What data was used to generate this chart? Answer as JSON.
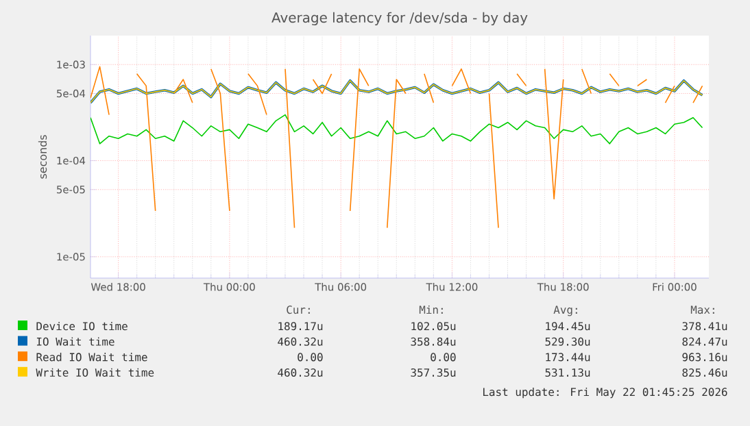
{
  "chart_data": {
    "type": "line",
    "title": "Average latency for /dev/sda - by day",
    "ylabel": "seconds",
    "log": true,
    "grid": true,
    "legend": "bottom",
    "xlim": [
      "2026-05-20T16:30",
      "2026-05-22T01:51"
    ],
    "ylim": [
      6e-06,
      0.002
    ],
    "xticks": [
      {
        "value": "2026-05-20T18:00",
        "label": "Wed 18:00"
      },
      {
        "value": "2026-05-21T00:00",
        "label": "Thu 00:00"
      },
      {
        "value": "2026-05-21T06:00",
        "label": "Thu 06:00"
      },
      {
        "value": "2026-05-21T12:00",
        "label": "Thu 12:00"
      },
      {
        "value": "2026-05-21T18:00",
        "label": "Thu 18:00"
      },
      {
        "value": "2026-05-22T00:00",
        "label": "Fri 00:00"
      }
    ],
    "yticks": [
      {
        "value": 1e-05,
        "label": "1e-05"
      },
      {
        "value": 5e-05,
        "label": "5e-05"
      },
      {
        "value": 0.0001,
        "label": "1e-04"
      },
      {
        "value": 0.0005,
        "label": "5e-04"
      },
      {
        "value": 0.001,
        "label": "1e-03"
      }
    ],
    "x": [
      "2026-05-20T16:30",
      "2026-05-20T17:00",
      "2026-05-20T17:30",
      "2026-05-20T18:00",
      "2026-05-20T18:30",
      "2026-05-20T19:00",
      "2026-05-20T19:30",
      "2026-05-20T20:00",
      "2026-05-20T20:30",
      "2026-05-20T21:00",
      "2026-05-20T21:30",
      "2026-05-20T22:00",
      "2026-05-20T22:30",
      "2026-05-20T23:00",
      "2026-05-20T23:30",
      "2026-05-21T00:00",
      "2026-05-21T00:30",
      "2026-05-21T01:00",
      "2026-05-21T01:30",
      "2026-05-21T02:00",
      "2026-05-21T02:30",
      "2026-05-21T03:00",
      "2026-05-21T03:30",
      "2026-05-21T04:00",
      "2026-05-21T04:30",
      "2026-05-21T05:00",
      "2026-05-21T05:30",
      "2026-05-21T06:00",
      "2026-05-21T06:30",
      "2026-05-21T07:00",
      "2026-05-21T07:30",
      "2026-05-21T08:00",
      "2026-05-21T08:30",
      "2026-05-21T09:00",
      "2026-05-21T09:30",
      "2026-05-21T10:00",
      "2026-05-21T10:30",
      "2026-05-21T11:00",
      "2026-05-21T11:30",
      "2026-05-21T12:00",
      "2026-05-21T12:30",
      "2026-05-21T13:00",
      "2026-05-21T13:30",
      "2026-05-21T14:00",
      "2026-05-21T14:30",
      "2026-05-21T15:00",
      "2026-05-21T15:30",
      "2026-05-21T16:00",
      "2026-05-21T16:30",
      "2026-05-21T17:00",
      "2026-05-21T17:30",
      "2026-05-21T18:00",
      "2026-05-21T18:30",
      "2026-05-21T19:00",
      "2026-05-21T19:30",
      "2026-05-21T20:00",
      "2026-05-21T20:30",
      "2026-05-21T21:00",
      "2026-05-21T21:30",
      "2026-05-21T22:00",
      "2026-05-21T22:30",
      "2026-05-21T23:00",
      "2026-05-21T23:30",
      "2026-05-22T00:00",
      "2026-05-22T00:30",
      "2026-05-22T01:00",
      "2026-05-22T01:30"
    ],
    "series": [
      {
        "name": "Device IO time",
        "color": "#00cc00",
        "values": [
          0.00028,
          0.00015,
          0.00018,
          0.00017,
          0.00019,
          0.00018,
          0.00021,
          0.00017,
          0.00018,
          0.00016,
          0.00026,
          0.00022,
          0.00018,
          0.00023,
          0.0002,
          0.00021,
          0.00017,
          0.00024,
          0.00022,
          0.0002,
          0.00026,
          0.0003,
          0.0002,
          0.00023,
          0.00019,
          0.00025,
          0.00018,
          0.00022,
          0.00017,
          0.00018,
          0.0002,
          0.00018,
          0.00026,
          0.00019,
          0.0002,
          0.00017,
          0.00018,
          0.00022,
          0.00016,
          0.00019,
          0.00018,
          0.00016,
          0.0002,
          0.00024,
          0.00022,
          0.00025,
          0.00021,
          0.00026,
          0.00023,
          0.00022,
          0.00017,
          0.00021,
          0.0002,
          0.00023,
          0.00018,
          0.00019,
          0.00015,
          0.0002,
          0.00022,
          0.00019,
          0.0002,
          0.00022,
          0.00019,
          0.00024,
          0.00025,
          0.00028,
          0.00022
        ]
      },
      {
        "name": "IO Wait time",
        "color": "#0066b3",
        "values": [
          0.0004,
          0.00052,
          0.00055,
          0.0005,
          0.00053,
          0.00056,
          0.0005,
          0.00052,
          0.00054,
          0.00051,
          0.0006,
          0.0005,
          0.00055,
          0.00046,
          0.00063,
          0.00053,
          0.0005,
          0.00058,
          0.00054,
          0.00051,
          0.00065,
          0.00054,
          0.0005,
          0.00056,
          0.00052,
          0.0006,
          0.00053,
          0.0005,
          0.00068,
          0.00054,
          0.00052,
          0.00056,
          0.0005,
          0.00053,
          0.00055,
          0.00058,
          0.00051,
          0.00062,
          0.00054,
          0.0005,
          0.00053,
          0.00056,
          0.00051,
          0.00054,
          0.00065,
          0.00052,
          0.00057,
          0.0005,
          0.00055,
          0.00053,
          0.00051,
          0.00056,
          0.00054,
          0.0005,
          0.00058,
          0.00052,
          0.00055,
          0.00053,
          0.00056,
          0.00052,
          0.00054,
          0.0005,
          0.00057,
          0.00053,
          0.00068,
          0.00055,
          0.00048
        ]
      },
      {
        "name": "Read IO Wait time",
        "color": "#ff8000",
        "values": [
          0.00045,
          0.00095,
          0.0003,
          null,
          null,
          0.0008,
          0.0006,
          3e-05,
          null,
          0.0005,
          0.0007,
          0.0004,
          null,
          0.0009,
          0.0005,
          3e-05,
          null,
          0.0008,
          0.0006,
          0.0003,
          null,
          0.0009,
          2e-05,
          null,
          0.0007,
          0.0005,
          0.0008,
          null,
          3e-05,
          0.0009,
          0.0006,
          null,
          2e-05,
          0.0007,
          0.0005,
          null,
          0.0008,
          0.0004,
          null,
          0.0006,
          0.0009,
          0.0005,
          null,
          0.0005,
          2e-05,
          null,
          0.0008,
          0.0006,
          null,
          0.0009,
          4e-05,
          0.0007,
          null,
          0.0009,
          0.0005,
          null,
          0.0008,
          0.0006,
          null,
          0.0006,
          0.0007,
          null,
          0.0004,
          0.0006,
          null,
          0.0004,
          0.0006
        ]
      },
      {
        "name": "Write IO Wait time",
        "color": "#ffcc00",
        "values": [
          0.0004,
          0.00052,
          0.00055,
          0.0005,
          0.00053,
          0.00056,
          0.0005,
          0.00052,
          0.00054,
          0.00051,
          0.0006,
          0.0005,
          0.00055,
          0.00046,
          0.00063,
          0.00053,
          0.0005,
          0.00058,
          0.00054,
          0.00051,
          0.00065,
          0.00054,
          0.0005,
          0.00056,
          0.00052,
          0.0006,
          0.00053,
          0.0005,
          0.00068,
          0.00054,
          0.00052,
          0.00056,
          0.0005,
          0.00053,
          0.00055,
          0.00058,
          0.00051,
          0.00062,
          0.00054,
          0.0005,
          0.00053,
          0.00056,
          0.00051,
          0.00054,
          0.00065,
          0.00052,
          0.00057,
          0.0005,
          0.00055,
          0.00053,
          0.00051,
          0.00056,
          0.00054,
          0.0005,
          0.00058,
          0.00052,
          0.00055,
          0.00053,
          0.00056,
          0.00052,
          0.00054,
          0.0005,
          0.00057,
          0.00053,
          0.00068,
          0.00055,
          0.00048
        ]
      }
    ],
    "annotations": [
      "Cur:",
      "Min:",
      "Avg:",
      "Max:",
      "189.17u",
      "102.05u",
      "194.45u",
      "378.41u",
      "460.32u",
      "358.84u",
      "529.30u",
      "824.47u",
      "0.00",
      "0.00",
      "173.44u",
      "963.16u",
      "460.32u",
      "357.35u",
      "531.13u",
      "825.46u",
      "Last update: Fri May 22 01:45:25 2026"
    ]
  }
}
